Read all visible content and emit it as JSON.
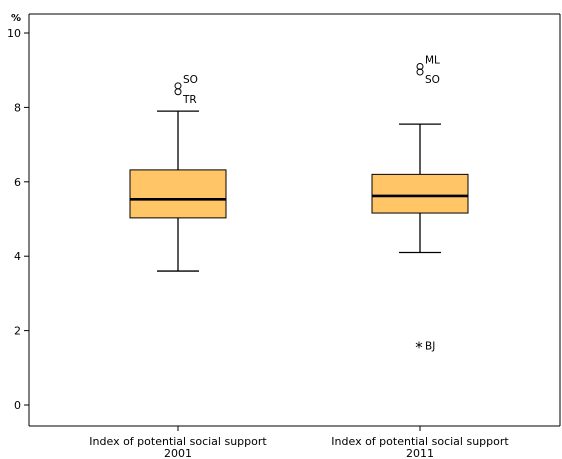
{
  "chart_data": {
    "type": "box",
    "y_unit_label": "%",
    "ylim": [
      -0.6,
      10.6
    ],
    "y_ticks": [
      0,
      2,
      4,
      6,
      8,
      10
    ],
    "grid": false,
    "box_fill_color": "#ffc566",
    "boxes": [
      {
        "label_line1": "Index of potential social support",
        "label_line2": "2001",
        "whisker_low": 3.6,
        "q1": 5.03,
        "median": 5.53,
        "q3": 6.32,
        "whisker_high": 7.9,
        "outliers": [
          {
            "label": "SO",
            "value": 8.58,
            "marker": "circle"
          },
          {
            "label": "TR",
            "value": 8.42,
            "marker": "circle"
          }
        ]
      },
      {
        "label_line1": "Index of potential social support",
        "label_line2": "2011",
        "whisker_low": 4.1,
        "q1": 5.16,
        "median": 5.62,
        "q3": 6.2,
        "whisker_high": 7.55,
        "outliers": [
          {
            "label": "ML",
            "value": 9.1,
            "marker": "circle"
          },
          {
            "label": "SO",
            "value": 8.95,
            "marker": "circle"
          },
          {
            "label": "BJ",
            "value": 1.6,
            "marker": "star"
          }
        ]
      }
    ]
  }
}
